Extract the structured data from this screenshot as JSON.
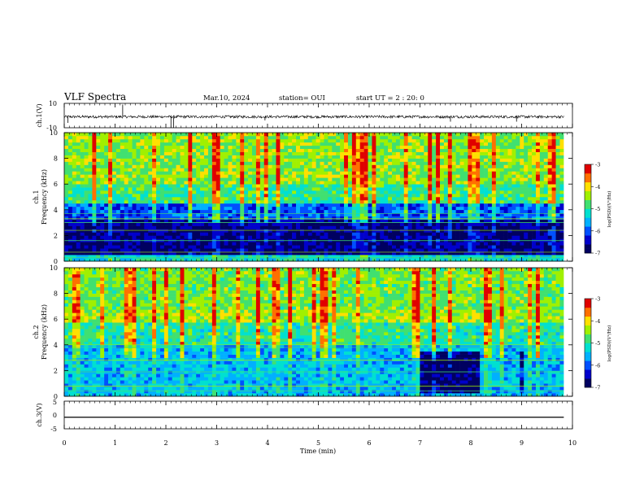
{
  "header": {
    "title": "VLF Spectra",
    "date": "Mar.10, 2024",
    "station": "station= OUI",
    "start_ut": "start UT =  2 : 20: 0"
  },
  "colors": {
    "background": "#ffffff",
    "axis": "#000000",
    "colormap": [
      "#000060",
      "#0000cc",
      "#0050ff",
      "#00b0ff",
      "#00e0d0",
      "#40e070",
      "#a0f000",
      "#ffe000",
      "#ff7000",
      "#e00000",
      "#ffffff"
    ]
  },
  "chart_data": [
    {
      "type": "line",
      "id": "ch1-waveform",
      "ylabel": "ch.1(V)",
      "ylim": [
        -10,
        10
      ],
      "y_ticks": [
        "10",
        "-10"
      ],
      "x_range_min": [
        0,
        9.83
      ],
      "baseline": -1,
      "spikes": [
        {
          "t": 0.07,
          "v": -6
        },
        {
          "t": 1.15,
          "v": 9
        },
        {
          "t": 2.1,
          "v": -10
        },
        {
          "t": 2.15,
          "v": -10
        },
        {
          "t": 3.95,
          "v": -4
        },
        {
          "t": 7.6,
          "v": -5
        },
        {
          "t": 8.9,
          "v": -5
        }
      ]
    },
    {
      "type": "heatmap",
      "id": "ch1-spectrogram",
      "ylabel": "Frequency (kHz)",
      "channel_label": "ch.1",
      "ylim_khz": [
        0,
        10
      ],
      "y_ticks": [
        "0",
        "2",
        "4",
        "6",
        "8",
        "10"
      ],
      "x_range_min": [
        0,
        9.83
      ],
      "colorbar": {
        "label": "log(PSD)(V²/Hz)",
        "range": [
          -7,
          -3
        ],
        "ticks": [
          "-3",
          "-4",
          "-5",
          "-6",
          "-7"
        ]
      },
      "bands": [
        {
          "f_from": 0,
          "f_to": 0.6,
          "level": -5.3
        },
        {
          "f_from": 0.6,
          "f_to": 3.3,
          "level": -6.7
        },
        {
          "f_from": 3.3,
          "f_to": 4.5,
          "level": -6.0
        },
        {
          "f_from": 4.5,
          "f_to": 6.0,
          "level": -4.9
        },
        {
          "f_from": 6.0,
          "f_to": 10,
          "level": -4.5
        }
      ],
      "interference_lines_khz": [
        0.3,
        0.7,
        1.6,
        2.4,
        3.0,
        3.3,
        3.7
      ]
    },
    {
      "type": "heatmap",
      "id": "ch2-spectrogram",
      "ylabel": "Frequency (kHz)",
      "channel_label": "ch.2",
      "ylim_khz": [
        0,
        10
      ],
      "y_ticks": [
        "0",
        "2",
        "4",
        "6",
        "8",
        "10"
      ],
      "x_range_min": [
        0,
        9.83
      ],
      "colorbar": {
        "label": "log(PSD)(V²/Hz)",
        "range": [
          -7,
          -3
        ],
        "ticks": [
          "-3",
          "-4",
          "-5",
          "-6",
          "-7"
        ]
      },
      "bands": [
        {
          "f_from": 0,
          "f_to": 4.0,
          "level": -5.5
        },
        {
          "f_from": 4.0,
          "f_to": 5.8,
          "level": -5.0
        },
        {
          "f_from": 5.8,
          "f_to": 6.8,
          "level": -4.4
        },
        {
          "f_from": 6.8,
          "f_to": 10,
          "level": -4.6
        }
      ],
      "dark_patches": [
        {
          "t_from": 7.0,
          "t_to": 8.2,
          "f_from": 0.3,
          "f_to": 3.5,
          "level": -6.8
        },
        {
          "t_from": 8.95,
          "t_to": 9.05,
          "f_from": 0.3,
          "f_to": 3.5,
          "level": -6.6
        }
      ],
      "interference_lines_khz": [
        0.4,
        0.8,
        1.9,
        2.8,
        3.8,
        4.0
      ]
    },
    {
      "type": "line",
      "id": "ch3-waveform",
      "ylabel": "ch.3(V)",
      "ylim": [
        -5,
        5
      ],
      "y_ticks": [
        "5",
        "0",
        "-5"
      ],
      "x_range_min": [
        0,
        9.83
      ],
      "constant_value": -0.8
    }
  ],
  "x_axis": {
    "label": "Time (min)",
    "ticks": [
      "0",
      "1",
      "2",
      "3",
      "4",
      "5",
      "6",
      "7",
      "8",
      "9",
      "10"
    ],
    "range": [
      0,
      10
    ]
  }
}
